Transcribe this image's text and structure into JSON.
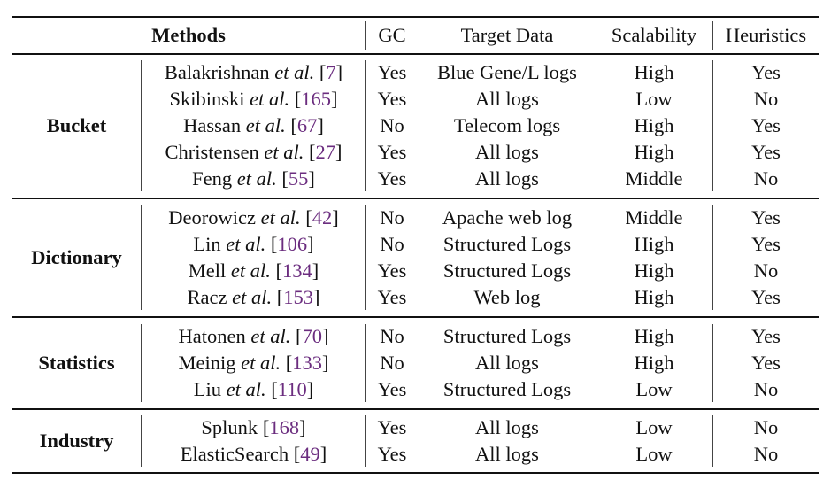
{
  "headers": {
    "methods": "Methods",
    "gc": "GC",
    "target": "Target Data",
    "scalability": "Scalability",
    "heuristics": "Heuristics"
  },
  "colors": {
    "ref": "#6b2d7f"
  },
  "groups": [
    {
      "name": "Bucket",
      "rows": [
        {
          "author": "Balakrishnan",
          "etal": "et al.",
          "ref": "7",
          "gc": "Yes",
          "target": "Blue Gene/L logs",
          "scalability": "High",
          "heuristics": "Yes"
        },
        {
          "author": "Skibinski",
          "etal": "et al.",
          "ref": "165",
          "gc": "Yes",
          "target": "All logs",
          "scalability": "Low",
          "heuristics": "No"
        },
        {
          "author": "Hassan",
          "etal": "et al.",
          "ref": "67",
          "gc": "No",
          "target": "Telecom logs",
          "scalability": "High",
          "heuristics": "Yes"
        },
        {
          "author": "Christensen",
          "etal": "et al.",
          "ref": "27",
          "gc": "Yes",
          "target": "All logs",
          "scalability": "High",
          "heuristics": "Yes"
        },
        {
          "author": "Feng",
          "etal": "et al.",
          "ref": "55",
          "gc": "Yes",
          "target": "All logs",
          "scalability": "Middle",
          "heuristics": "No"
        }
      ]
    },
    {
      "name": "Dictionary",
      "rows": [
        {
          "author": "Deorowicz",
          "etal": "et al.",
          "ref": "42",
          "gc": "No",
          "target": "Apache web log",
          "scalability": "Middle",
          "heuristics": "Yes"
        },
        {
          "author": "Lin",
          "etal": "et al.",
          "ref": "106",
          "gc": "No",
          "target": "Structured Logs",
          "scalability": "High",
          "heuristics": "Yes"
        },
        {
          "author": "Mell",
          "etal": "et al.",
          "ref": "134",
          "gc": "Yes",
          "target": "Structured Logs",
          "scalability": "High",
          "heuristics": "No"
        },
        {
          "author": "Racz",
          "etal": "et al.",
          "ref": "153",
          "gc": "Yes",
          "target": "Web log",
          "scalability": "High",
          "heuristics": "Yes"
        }
      ]
    },
    {
      "name": "Statistics",
      "rows": [
        {
          "author": "Hatonen",
          "etal": "et al.",
          "ref": "70",
          "gc": "No",
          "target": "Structured Logs",
          "scalability": "High",
          "heuristics": "Yes"
        },
        {
          "author": "Meinig",
          "etal": "et al.",
          "ref": "133",
          "gc": "No",
          "target": "All logs",
          "scalability": "High",
          "heuristics": "Yes"
        },
        {
          "author": "Liu",
          "etal": "et al.",
          "ref": "110",
          "gc": "Yes",
          "target": "Structured Logs",
          "scalability": "Low",
          "heuristics": "No"
        }
      ]
    },
    {
      "name": "Industry",
      "rows": [
        {
          "author": "Splunk",
          "etal": "",
          "ref": "168",
          "gc": "Yes",
          "target": "All logs",
          "scalability": "Low",
          "heuristics": "No"
        },
        {
          "author": "ElasticSearch",
          "etal": "",
          "ref": "49",
          "gc": "Yes",
          "target": "All logs",
          "scalability": "Low",
          "heuristics": "No"
        }
      ]
    }
  ]
}
